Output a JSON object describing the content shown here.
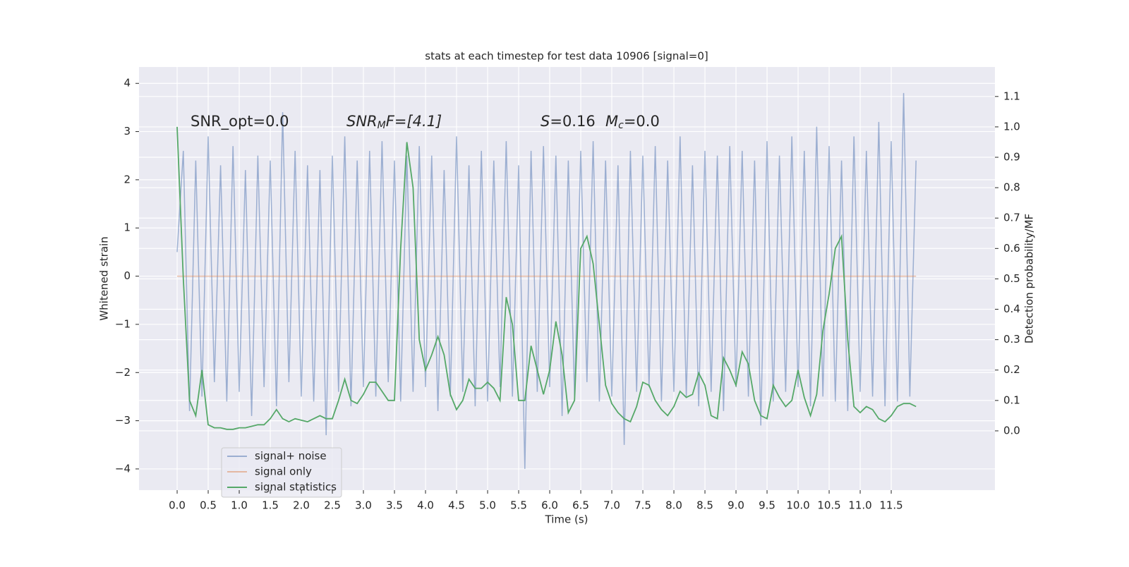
{
  "chart_data": {
    "type": "line",
    "title": "stats at each timestep for test data 10906 [signal=0]",
    "xlabel": "Time (s)",
    "ylabel": "Whitened strain",
    "y2label": "Detection probability/MF",
    "annotations": {
      "snr_opt": "SNR_opt=0.0",
      "snr_mf": [
        "SNR",
        "M",
        "F=[4.1]"
      ],
      "s": [
        "S",
        "=0.16"
      ],
      "mc": [
        "M",
        "c",
        "=0.0"
      ]
    },
    "x": [
      0.0,
      0.1,
      0.2,
      0.3,
      0.4,
      0.5,
      0.6,
      0.7,
      0.8,
      0.9,
      1.0,
      1.1,
      1.2,
      1.3,
      1.4,
      1.5,
      1.6,
      1.7,
      1.8,
      1.9,
      2.0,
      2.1,
      2.2,
      2.3,
      2.4,
      2.5,
      2.6,
      2.7,
      2.8,
      2.9,
      3.0,
      3.1,
      3.2,
      3.3,
      3.4,
      3.5,
      3.6,
      3.7,
      3.8,
      3.9,
      4.0,
      4.1,
      4.2,
      4.3,
      4.4,
      4.5,
      4.6,
      4.7,
      4.8,
      4.9,
      5.0,
      5.1,
      5.2,
      5.3,
      5.4,
      5.5,
      5.6,
      5.7,
      5.8,
      5.9,
      6.0,
      6.1,
      6.2,
      6.3,
      6.4,
      6.5,
      6.6,
      6.7,
      6.8,
      6.9,
      7.0,
      7.1,
      7.2,
      7.3,
      7.4,
      7.5,
      7.6,
      7.7,
      7.8,
      7.9,
      8.0,
      8.1,
      8.2,
      8.3,
      8.4,
      8.5,
      8.6,
      8.7,
      8.8,
      8.9,
      9.0,
      9.1,
      9.2,
      9.3,
      9.4,
      9.5,
      9.6,
      9.7,
      9.8,
      9.9,
      10.0,
      10.1,
      10.2,
      10.3,
      10.4,
      10.5,
      10.6,
      10.7,
      10.8,
      10.9,
      11.0,
      11.1,
      11.2,
      11.3,
      11.4,
      11.5,
      11.6,
      11.7,
      11.8,
      11.9
    ],
    "series": [
      {
        "name": "signal+ noise",
        "color": "#4c72b0",
        "axis": "y",
        "values": [
          0.5,
          2.6,
          -2.8,
          2.4,
          -2.5,
          2.9,
          -2.2,
          2.3,
          -2.6,
          2.7,
          -2.4,
          2.2,
          -2.9,
          2.5,
          -2.3,
          2.4,
          -2.7,
          3.4,
          -2.2,
          2.6,
          -2.5,
          2.3,
          -2.6,
          2.2,
          -3.3,
          2.5,
          -2.4,
          2.9,
          -2.7,
          2.4,
          -2.3,
          2.6,
          -2.5,
          2.8,
          -2.2,
          2.4,
          -2.6,
          2.5,
          -2.4,
          2.7,
          -2.3,
          2.5,
          -2.8,
          2.2,
          -2.5,
          2.9,
          -2.4,
          2.3,
          -2.7,
          2.6,
          -2.6,
          2.4,
          -2.3,
          2.8,
          -2.5,
          2.3,
          -4.0,
          2.6,
          -2.4,
          2.7,
          -2.3,
          2.5,
          -2.9,
          2.4,
          -2.5,
          2.6,
          -2.2,
          2.8,
          -2.6,
          2.4,
          -2.5,
          2.3,
          -3.5,
          2.6,
          -2.4,
          2.5,
          -2.3,
          2.7,
          -2.6,
          2.4,
          -2.4,
          2.9,
          -2.5,
          2.3,
          -2.7,
          2.6,
          -2.4,
          2.5,
          -2.8,
          2.7,
          -2.3,
          2.6,
          -2.5,
          2.4,
          -3.1,
          2.8,
          -2.6,
          2.5,
          -2.4,
          2.9,
          -2.3,
          2.6,
          -2.7,
          3.1,
          -2.5,
          2.7,
          -2.6,
          2.4,
          -2.8,
          2.9,
          -2.4,
          2.6,
          -2.5,
          3.2,
          -2.7,
          2.8,
          -2.6,
          3.8,
          -2.5,
          2.4
        ]
      },
      {
        "name": "signal only",
        "color": "#dd8452",
        "axis": "y",
        "values": [
          0,
          0,
          0,
          0,
          0,
          0,
          0,
          0,
          0,
          0,
          0,
          0,
          0,
          0,
          0,
          0,
          0,
          0,
          0,
          0,
          0,
          0,
          0,
          0,
          0,
          0,
          0,
          0,
          0,
          0,
          0,
          0,
          0,
          0,
          0,
          0,
          0,
          0,
          0,
          0,
          0,
          0,
          0,
          0,
          0,
          0,
          0,
          0,
          0,
          0,
          0,
          0,
          0,
          0,
          0,
          0,
          0,
          0,
          0,
          0,
          0,
          0,
          0,
          0,
          0,
          0,
          0,
          0,
          0,
          0,
          0,
          0,
          0,
          0,
          0,
          0,
          0,
          0,
          0,
          0,
          0,
          0,
          0,
          0,
          0,
          0,
          0,
          0,
          0,
          0,
          0,
          0,
          0,
          0,
          0,
          0,
          0,
          0,
          0,
          0,
          0,
          0,
          0,
          0,
          0,
          0,
          0,
          0,
          0,
          0,
          0,
          0,
          0,
          0,
          0,
          0,
          0,
          0,
          0,
          0
        ]
      },
      {
        "name": "signal statistics",
        "color": "#55a868",
        "axis": "y2",
        "values": [
          1.0,
          0.5,
          0.1,
          0.05,
          0.2,
          0.02,
          0.01,
          0.01,
          0.005,
          0.005,
          0.01,
          0.01,
          0.015,
          0.02,
          0.02,
          0.04,
          0.07,
          0.04,
          0.03,
          0.04,
          0.035,
          0.03,
          0.04,
          0.05,
          0.04,
          0.04,
          0.1,
          0.17,
          0.1,
          0.09,
          0.12,
          0.16,
          0.16,
          0.13,
          0.1,
          0.1,
          0.6,
          0.95,
          0.8,
          0.3,
          0.2,
          0.25,
          0.31,
          0.25,
          0.12,
          0.07,
          0.1,
          0.17,
          0.14,
          0.14,
          0.16,
          0.14,
          0.1,
          0.44,
          0.35,
          0.1,
          0.1,
          0.28,
          0.2,
          0.12,
          0.2,
          0.36,
          0.25,
          0.06,
          0.1,
          0.6,
          0.64,
          0.55,
          0.35,
          0.15,
          0.09,
          0.06,
          0.04,
          0.03,
          0.08,
          0.16,
          0.15,
          0.1,
          0.07,
          0.05,
          0.08,
          0.13,
          0.11,
          0.12,
          0.19,
          0.15,
          0.05,
          0.04,
          0.24,
          0.2,
          0.15,
          0.26,
          0.22,
          0.1,
          0.05,
          0.04,
          0.15,
          0.11,
          0.08,
          0.1,
          0.2,
          0.11,
          0.05,
          0.12,
          0.33,
          0.45,
          0.6,
          0.64,
          0.3,
          0.08,
          0.06,
          0.08,
          0.07,
          0.04,
          0.03,
          0.05,
          0.08,
          0.09,
          0.09,
          0.08
        ]
      }
    ],
    "xlim": [
      -0.614,
      13.17
    ],
    "xticks": [
      {
        "value": 0,
        "label": "0.0"
      },
      {
        "value": 0.5,
        "label": "0.5"
      },
      {
        "value": 1,
        "label": "1.0"
      },
      {
        "value": 1.5,
        "label": "1.5"
      },
      {
        "value": 2,
        "label": "2.0"
      },
      {
        "value": 2.5,
        "label": "2.5"
      },
      {
        "value": 3,
        "label": "3.0"
      },
      {
        "value": 3.5,
        "label": "3.5"
      },
      {
        "value": 4,
        "label": "4.0"
      },
      {
        "value": 4.5,
        "label": "4.5"
      },
      {
        "value": 5,
        "label": "5.0"
      },
      {
        "value": 5.5,
        "label": "5.5"
      },
      {
        "value": 6,
        "label": "6.0"
      },
      {
        "value": 6.5,
        "label": "6.5"
      },
      {
        "value": 7,
        "label": "7.0"
      },
      {
        "value": 7.5,
        "label": "7.5"
      },
      {
        "value": 8,
        "label": "8.0"
      },
      {
        "value": 8.5,
        "label": "8.5"
      },
      {
        "value": 9,
        "label": "9.0"
      },
      {
        "value": 9.5,
        "label": "9.5"
      },
      {
        "value": 10,
        "label": "10.0"
      },
      {
        "value": 10.5,
        "label": "10.5"
      },
      {
        "value": 11,
        "label": "11.0"
      },
      {
        "value": 11.5,
        "label": "11.5"
      }
    ],
    "ylim": [
      -4.44,
      4.34
    ],
    "yticks": [
      {
        "value": -4,
        "label": "−4"
      },
      {
        "value": -3,
        "label": "−3"
      },
      {
        "value": -2,
        "label": "−2"
      },
      {
        "value": -1,
        "label": "−1"
      },
      0,
      1,
      2,
      3,
      4
    ],
    "y2lim": [
      -0.195,
      1.197
    ],
    "y2ticks": [
      {
        "value": 0,
        "label": "0.0"
      },
      {
        "value": 0.1,
        "label": "0.1"
      },
      {
        "value": 0.2,
        "label": "0.2"
      },
      {
        "value": 0.3,
        "label": "0.3"
      },
      {
        "value": 0.4,
        "label": "0.4"
      },
      {
        "value": 0.5,
        "label": "0.5"
      },
      {
        "value": 0.6,
        "label": "0.6"
      },
      {
        "value": 0.7,
        "label": "0.7"
      },
      {
        "value": 0.8,
        "label": "0.8"
      },
      {
        "value": 0.9,
        "label": "0.9"
      },
      {
        "value": 1,
        "label": "1.0"
      },
      {
        "value": 1.1,
        "label": "1.1"
      }
    ],
    "grid": true,
    "legend": "lower left"
  }
}
